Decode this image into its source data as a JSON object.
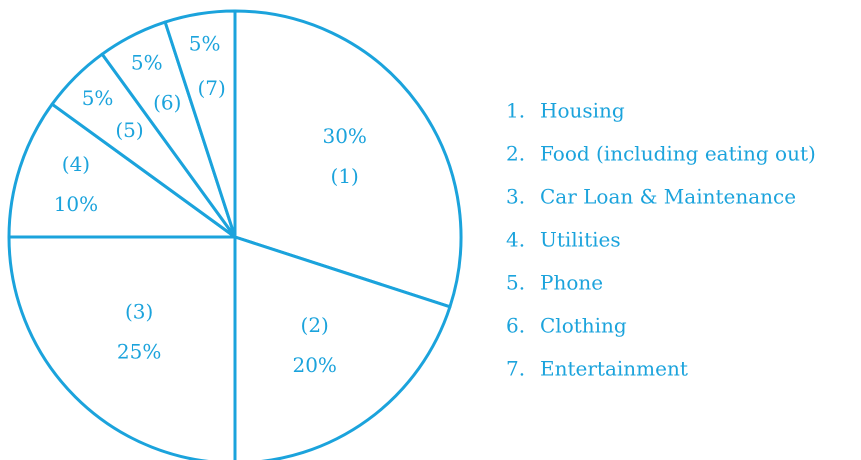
{
  "chart_data": {
    "type": "pie",
    "categories": [
      "Housing",
      "Food (including eating out)",
      "Car Loan & Maintenance",
      "Utilities",
      "Phone",
      "Clothing",
      "Entertainment"
    ],
    "legend_numbers": [
      "1.",
      "2.",
      "3.",
      "4.",
      "5.",
      "6.",
      "7."
    ],
    "slice_numbers": [
      "(1)",
      "(2)",
      "(3)",
      "(4)",
      "(5)",
      "(6)",
      "(7)"
    ],
    "values": [
      30,
      20,
      25,
      10,
      5,
      5,
      5
    ],
    "value_labels": [
      "30%",
      "20%",
      "25%",
      "10%",
      "5%",
      "5%",
      "5%"
    ],
    "color": "#1ba3dc"
  }
}
